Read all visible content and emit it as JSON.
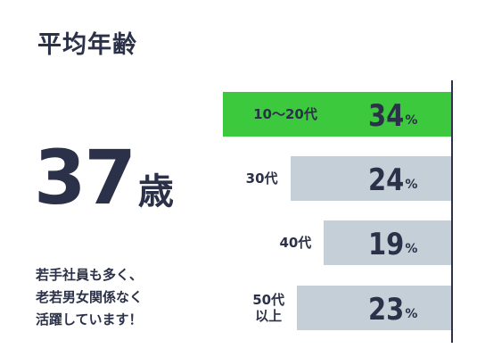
{
  "title": "平均年齢",
  "average_age": {
    "number": 37,
    "unit": "歳"
  },
  "description": [
    "若手社員も多く、",
    "老若男女関係なく",
    "活躍しています！"
  ],
  "chart_data": {
    "type": "bar",
    "orientation": "horizontal",
    "categories": [
      "10〜20代",
      "30代",
      "40代",
      "50代\n以上"
    ],
    "values": [
      34,
      24,
      19,
      23
    ],
    "unit": "%",
    "colors": [
      "#3dc93d",
      "#c4cfd8",
      "#c4cfd8",
      "#c4cfd8"
    ],
    "xlim": [
      0,
      34
    ]
  }
}
